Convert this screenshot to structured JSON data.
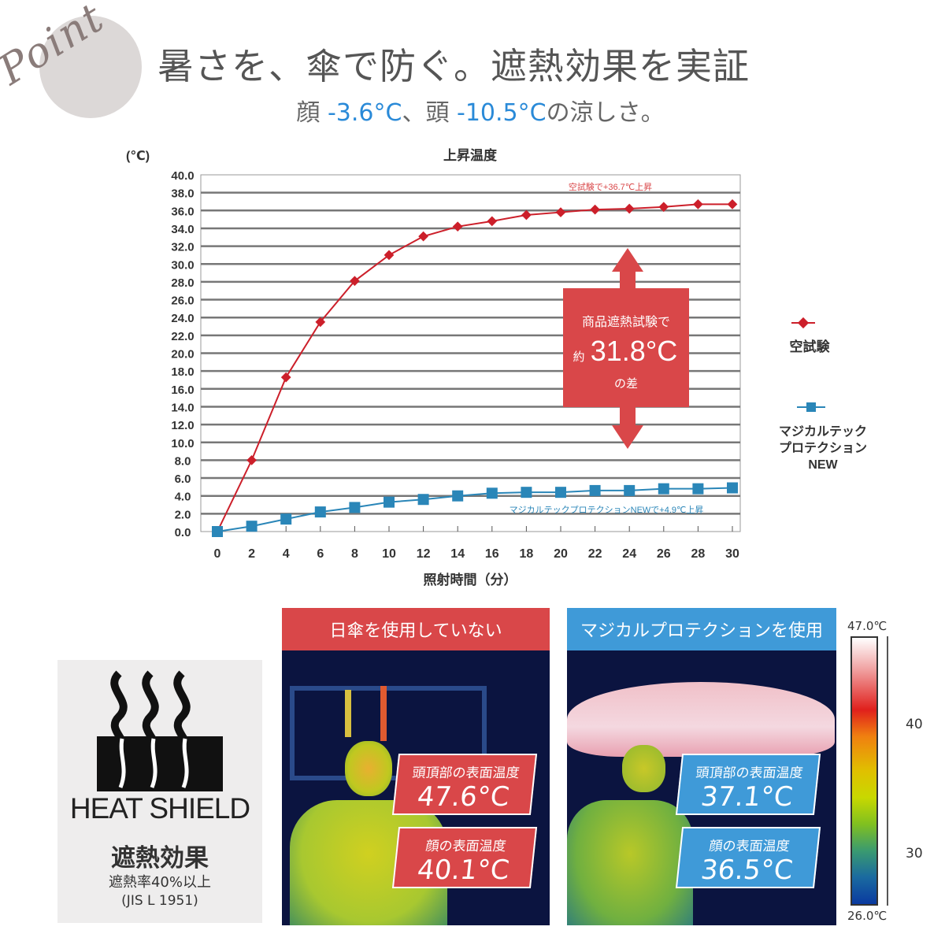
{
  "header": {
    "badge": "Point",
    "title": "暑さを、傘で防ぐ。遮熱効果を実証",
    "subtitle": {
      "p1": "顔 ",
      "v1": "-3.6°C",
      "p2": "、頭 ",
      "v2": "-10.5°C",
      "p3": "の涼しさ。"
    }
  },
  "colors": {
    "red": "#d94749",
    "blue": "#3f9ad8",
    "series_red": "#cc1f2a",
    "series_blue": "#2a86b8"
  },
  "chart_data": {
    "type": "line",
    "title": "上昇温度",
    "xlabel": "照射時間（分）",
    "ylabel": "(℃)",
    "x": [
      0,
      2,
      4,
      6,
      8,
      10,
      12,
      14,
      16,
      18,
      20,
      22,
      24,
      26,
      28,
      30
    ],
    "xlim": [
      0,
      30
    ],
    "ylim": [
      0,
      40
    ],
    "yticks": [
      "0.0",
      "2.0",
      "4.0",
      "6.0",
      "8.0",
      "10.0",
      "12.0",
      "14.0",
      "16.0",
      "18.0",
      "20.0",
      "22.0",
      "24.0",
      "26.0",
      "28.0",
      "30.0",
      "32.0",
      "34.0",
      "36.0",
      "38.0",
      "40.0"
    ],
    "grid": true,
    "legend_position": "right",
    "series": [
      {
        "name": "空試験",
        "marker": "diamond",
        "values": [
          0,
          8.0,
          17.3,
          23.5,
          28.1,
          31.0,
          33.1,
          34.2,
          34.8,
          35.5,
          35.8,
          36.1,
          36.2,
          36.4,
          36.7,
          36.7
        ]
      },
      {
        "name": "マジカルテック プロテクション NEW",
        "marker": "square",
        "values": [
          0,
          0.6,
          1.4,
          2.2,
          2.7,
          3.3,
          3.6,
          4.0,
          4.3,
          4.4,
          4.4,
          4.6,
          4.6,
          4.8,
          4.8,
          4.9
        ]
      }
    ],
    "annotations": {
      "red": "空試験で+36.7℃上昇",
      "blue": "マジカルテックプロテクションNEWで+4.9℃上昇",
      "callout_l1": "商品遮熱試験で",
      "callout_pre": "約",
      "callout_value": "31.8°C",
      "callout_l3": "の差"
    },
    "legend": {
      "red": "空試験",
      "blue_l1": "マジカルテック",
      "blue_l2": "プロテクション",
      "blue_l3": "NEW"
    }
  },
  "shield": {
    "logo_text": "HEAT SHIELD",
    "title": "遮熱効果",
    "rate": "遮熱率40%以上",
    "standard": "(JIS L 1951)"
  },
  "panels": [
    {
      "heading": "日傘を使用していない",
      "head_label": "頭頂部の表面温度",
      "head_value": "47.6°C",
      "face_label": "顔の表面温度",
      "face_value": "40.1°C"
    },
    {
      "heading": "マジカルプロテクションを使用",
      "head_label": "頭頂部の表面温度",
      "head_value": "37.1°C",
      "face_label": "顔の表面温度",
      "face_value": "36.5°C"
    }
  ],
  "colorbar": {
    "max": "47.0℃",
    "min": "26.0℃",
    "ticks": [
      "40",
      "30"
    ]
  }
}
